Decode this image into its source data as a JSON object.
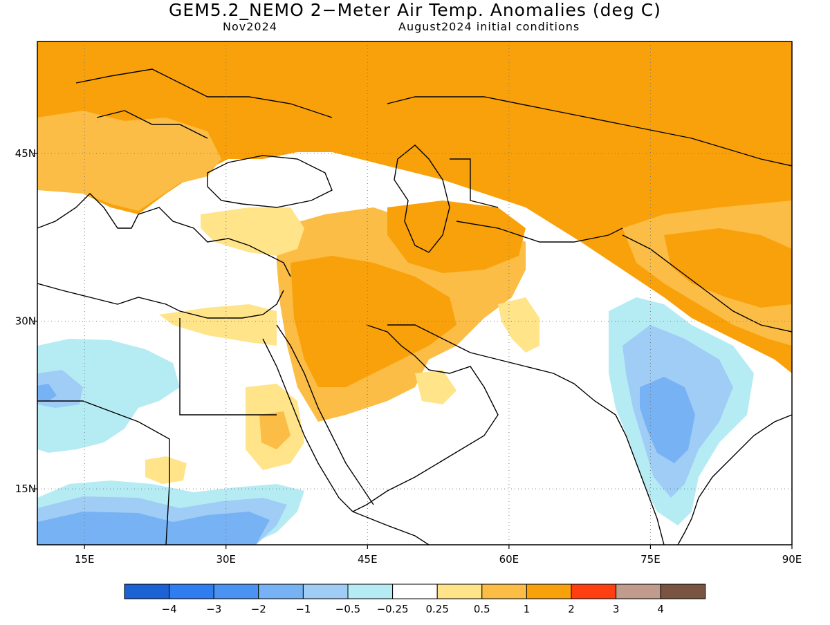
{
  "title": "GEM5.2_NEMO 2−Meter Air Temp. Anomalies (deg C)",
  "subtitle_left": "Nov2024",
  "subtitle_right": "August2024 initial conditions",
  "colors": {
    "neg4": "#1b62d4",
    "neg3": "#2f7df0",
    "neg2": "#4a93f2",
    "neg1": "#77b2f4",
    "neg05": "#9fcdf6",
    "neg025": "#b5ecf4",
    "zero": "#ffffff",
    "pos025": "#ffe48a",
    "pos05": "#fbbd45",
    "pos1": "#f9a10b",
    "pos2": "#ff3f12",
    "pos3": "#c19c8d",
    "pos4": "#7a5443"
  },
  "map": {
    "lon_range": [
      10,
      90
    ],
    "lat_range": [
      10,
      55
    ],
    "lon_ticks": [
      {
        "lon": 15,
        "label": "15E"
      },
      {
        "lon": 30,
        "label": "30E"
      },
      {
        "lon": 45,
        "label": "45E"
      },
      {
        "lon": 60,
        "label": "60E"
      },
      {
        "lon": 75,
        "label": "75E"
      },
      {
        "lon": 90,
        "label": "90E"
      }
    ],
    "lat_ticks": [
      {
        "lat": 45,
        "label": "45N"
      },
      {
        "lat": 30,
        "label": "30N"
      },
      {
        "lat": 15,
        "label": "15N"
      }
    ],
    "grid": true
  },
  "colorbar": {
    "boxes": [
      "neg4",
      "neg3",
      "neg2",
      "neg1",
      "neg05",
      "neg025",
      "zero",
      "pos025",
      "pos05",
      "pos1",
      "pos2",
      "pos3",
      "pos4"
    ],
    "labels": [
      "−4",
      "−3",
      "−2",
      "−1",
      "−0.5",
      "−0.25",
      "0.25",
      "0.5",
      "1",
      "2",
      "3",
      "4"
    ]
  }
}
